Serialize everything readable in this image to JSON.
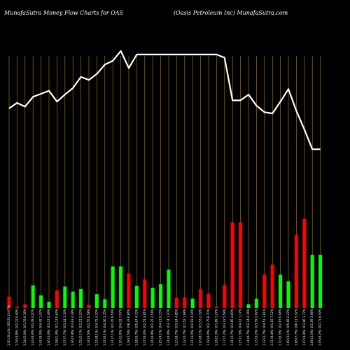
{
  "header": {
    "left": "MunafaSutra  Money Flow  Charts for OAS",
    "right": "(Oasis Petroleum Inc) MunafaSutra.com"
  },
  "colors": {
    "background": "#000000",
    "up_bar": "#00ff00",
    "down_bar": "#ff0000",
    "grid": "#b8860b",
    "price_line": "#ffffff"
  },
  "chart_data": {
    "type": "bar",
    "grid": "vertical",
    "bar_ylim": [
      0,
      100
    ],
    "price_ylim": [
      0,
      100
    ],
    "series": [
      {
        "kind": "bar",
        "values": [
          {
            "v": 4.5,
            "d": "down"
          },
          {
            "v": 0.5,
            "d": "down"
          },
          {
            "v": 1.5,
            "d": "down"
          },
          {
            "v": 9,
            "d": "up"
          },
          {
            "v": 5,
            "d": "up"
          },
          {
            "v": 2.5,
            "d": "up"
          },
          {
            "v": 7,
            "d": "down"
          },
          {
            "v": 8.5,
            "d": "up"
          },
          {
            "v": 6.5,
            "d": "up"
          },
          {
            "v": 7.5,
            "d": "up"
          },
          {
            "v": 1.2,
            "d": "down"
          },
          {
            "v": 5.5,
            "d": "up"
          },
          {
            "v": 3.5,
            "d": "up"
          },
          {
            "v": 16.5,
            "d": "up"
          },
          {
            "v": 16.5,
            "d": "up"
          },
          {
            "v": 13.7,
            "d": "down"
          },
          {
            "v": 8.8,
            "d": "up"
          },
          {
            "v": 11.3,
            "d": "down"
          },
          {
            "v": 8,
            "d": "up"
          },
          {
            "v": 9.4,
            "d": "up"
          },
          {
            "v": 15.2,
            "d": "up"
          },
          {
            "v": 3.9,
            "d": "down"
          },
          {
            "v": 4.2,
            "d": "down"
          },
          {
            "v": 3.7,
            "d": "up"
          },
          {
            "v": 7.4,
            "d": "down"
          },
          {
            "v": 5.7,
            "d": "down"
          },
          {
            "v": 0.5,
            "d": "down"
          },
          {
            "v": 9.2,
            "d": "down"
          },
          {
            "v": 34.0,
            "d": "down"
          },
          {
            "v": 34.0,
            "d": "down"
          },
          {
            "v": 1.5,
            "d": "up"
          },
          {
            "v": 3.7,
            "d": "up"
          },
          {
            "v": 13.2,
            "d": "down"
          },
          {
            "v": 17.2,
            "d": "down"
          },
          {
            "v": 13.2,
            "d": "up"
          },
          {
            "v": 10.6,
            "d": "up"
          },
          {
            "v": 28.9,
            "d": "down"
          },
          {
            "v": 35.3,
            "d": "down"
          },
          {
            "v": 21.1,
            "d": "up"
          },
          {
            "v": 21.1,
            "d": "up"
          }
        ]
      },
      {
        "kind": "line",
        "name": "price",
        "values": [
          79.2,
          81.4,
          79.9,
          83.8,
          85.0,
          86.2,
          81.9,
          84.7,
          87.3,
          91.7,
          90.5,
          92.9,
          96.6,
          98.1,
          102.0,
          95.2,
          100.6,
          100.6,
          100.6,
          100.6,
          100.6,
          100.6,
          100.6,
          100.6,
          100.6,
          100.6,
          100.6,
          99.3,
          82.4,
          82.4,
          84.7,
          80.3,
          77.7,
          77.2,
          81.9,
          86.9,
          78.2,
          70.9,
          63.0,
          63.0
        ]
      }
    ],
    "tick_labels": [
      "1.50 (10.4%) 105.21 10.07%",
      "1.34 (4.8%) 102.22 0.49%",
      "1.34 (2.0%) 101.79 0.16%",
      "1.43 (6.6%) 103.39 4.20%",
      "1.42 (9.0%) 104.42 1.07%",
      "1.40 (3.0%) 103.13 2.49%",
      "1.38 (1.3%) 101.13 0.63%",
      "1.37 (7.7%) 103.24 3.19%",
      "1.36 (5.9%) 103.63 4.38%",
      "1.35 (2.1%) 102.21 2.30%",
      "1.34 (3.5%) 102.55 0.58%",
      "1.33 (8.1%) 104.75 4.10%",
      "1.32 (6.1%) 104.36 3.15%",
      "1.31 (7.1%) 101.45 9.54%",
      "1.30 (1.0%) 104.32 7.57%",
      "1.29 (2.5%) 106.33 6.66%",
      "1.28 (5.7%) 105.67 4.33%",
      "1.27 (6.0%) 102.51 4.81%",
      "1.26 (4.9%) 101.25 2.54%",
      "1.25 (9.1%) 104.21 0.33%",
      "1.24 (4.4%) 103.74 1.20%",
      "1.23 (8.7%) 103.24 4.85%",
      "1.22 (5.7%) 101.52 1.68%",
      "1.21 (3.0%) 102.93 4.34%",
      "1.20 (8.1%) 103.53 2.19%",
      "1.19 (4.0%) 102.75 6.70%",
      "1.18 (2.3%) 101.89 1.27%",
      "1.17 (7.2%) 103.12 5.58%",
      "1.16 (3.7%) 103.85 4.69%",
      "1.15 (1.5%) 104.12 1.17%",
      "1.14 (9.7%) 102.14 4.16%",
      "1.13 (5.2%) 103.59 2.62%",
      "1.12 (2.7%) 104.51 3.81%",
      "1.11 (8.4%) 101.63 7.12%",
      "1.10 (6.3%) 102.87 0.94%",
      "1.09 (3.1%) 105.08 2.27%",
      "1.08 (7.7%) 106.11 5.52%",
      "1.07 (4.4%) 103.96 1.77%",
      "1.06 (2.5%) 101.59 3.96%",
      "1.05 (6.2%) 102.71 6.39%"
    ]
  }
}
